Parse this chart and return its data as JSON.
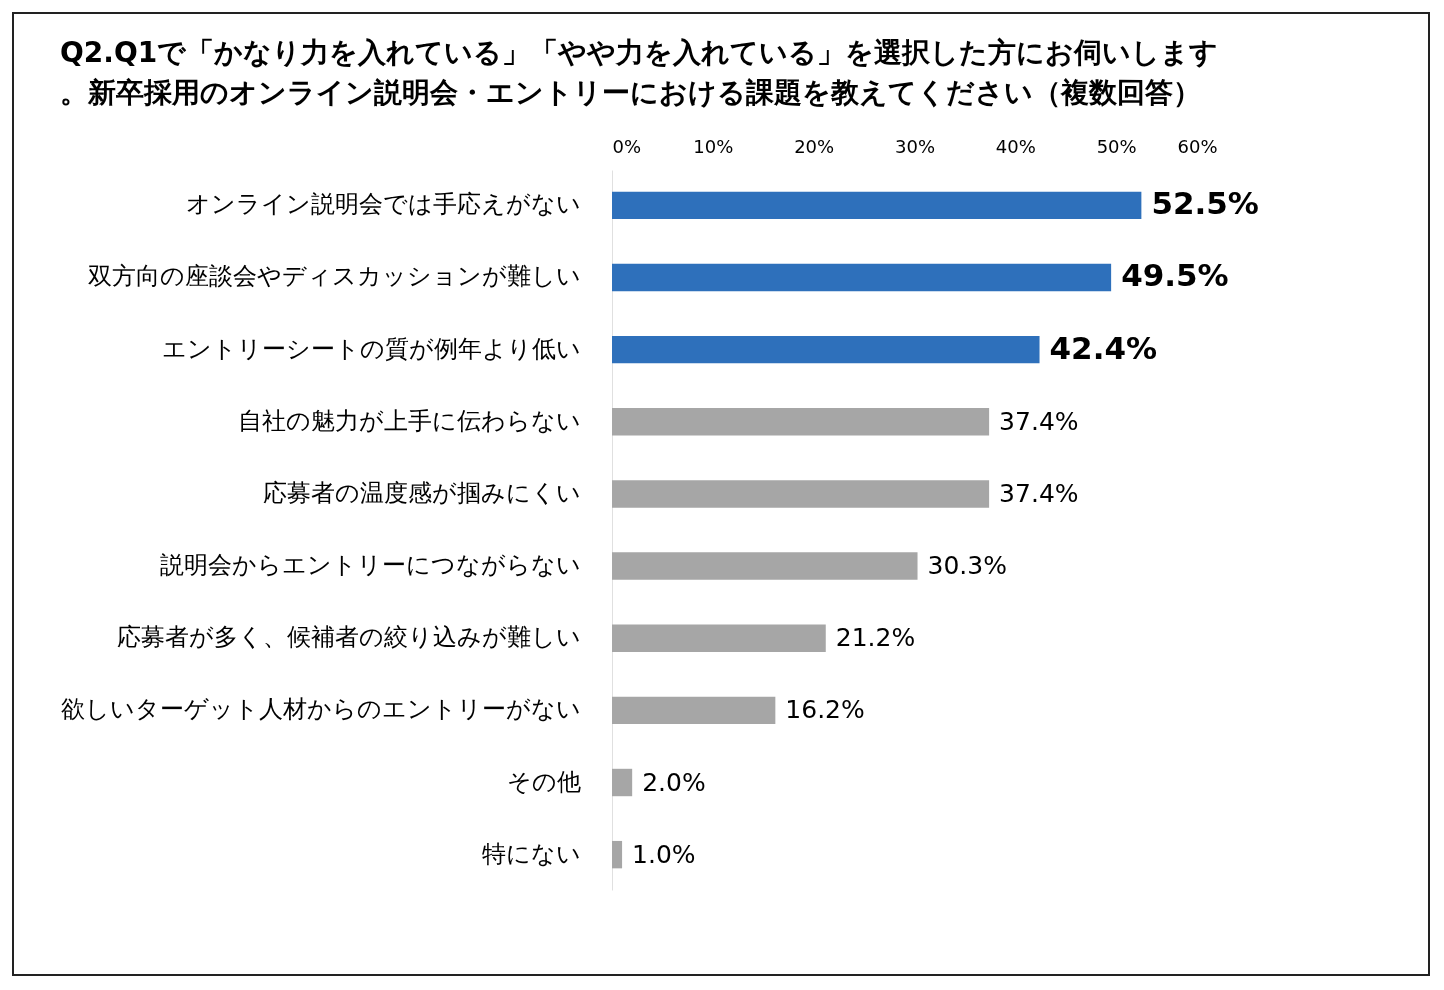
{
  "chart_data": {
    "type": "bar",
    "orientation": "horizontal",
    "title": "Q2.Q1で「かなり力を入れている」「やや力を入れている」を選択した方にお伺いします。新卒採用のオンライン説明会・エントリーにおける課題を教えてください（複数回答）",
    "categories": [
      "オンライン説明会では手応えがない",
      "双方向の座談会やディスカッションが難しい",
      "エントリーシートの質が例年より低い",
      "自社の魅力が上手に伝わらない",
      "応募者の温度感が掴みにくい",
      "説明会からエントリーにつながらない",
      "応募者が多く、候補者の絞り込みが難しい",
      "欲しいターゲット人材からのエントリーがない",
      "その他",
      "特にない"
    ],
    "values": [
      52.5,
      49.5,
      42.4,
      37.4,
      37.4,
      30.3,
      21.2,
      16.2,
      2.0,
      1.0
    ],
    "colors": [
      "#2e70bb",
      "#2e70bb",
      "#2e70bb",
      "#a6a6a6",
      "#a6a6a6",
      "#a6a6a6",
      "#a6a6a6",
      "#a6a6a6",
      "#a6a6a6",
      "#a6a6a6"
    ],
    "value_labels": [
      "52.5%",
      "49.5%",
      "42.4%",
      "37.4%",
      "37.4%",
      "30.3%",
      "21.2%",
      "16.2%",
      "2.0%",
      "1.0%"
    ],
    "xlim": [
      0,
      60
    ],
    "xticks": [
      {
        "value": 0,
        "label": "0%"
      },
      {
        "value": 10,
        "label": "10%"
      },
      {
        "value": 20,
        "label": "20%"
      },
      {
        "value": 30,
        "label": "30%"
      },
      {
        "value": 40,
        "label": "40%"
      },
      {
        "value": 50,
        "label": "50%"
      },
      {
        "value": 60,
        "label": "60%"
      }
    ],
    "grid": false
  }
}
